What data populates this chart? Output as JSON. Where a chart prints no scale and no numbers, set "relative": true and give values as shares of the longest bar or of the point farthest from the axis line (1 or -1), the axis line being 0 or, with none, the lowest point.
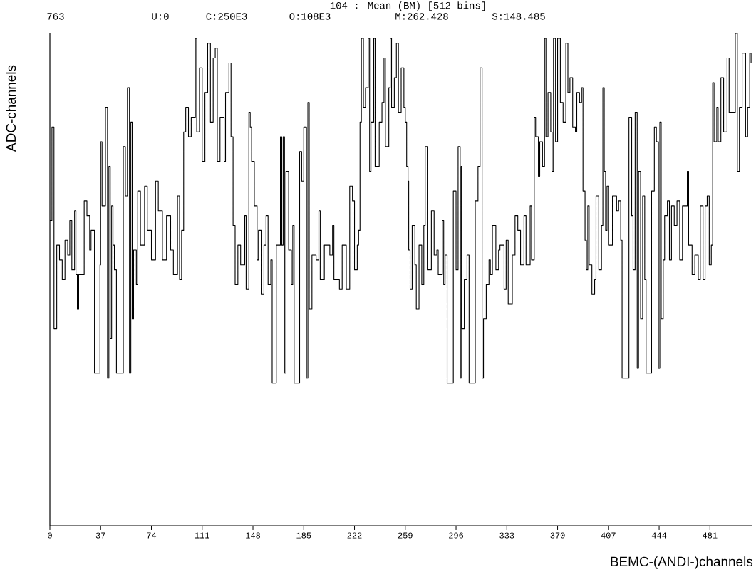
{
  "chart_data": {
    "type": "step",
    "title": "104 : Mean (BM)   [512 bins]",
    "xlabel": "BEMC-(ANDI-)channels",
    "ylabel": "ADC-channels",
    "annotations": [
      "763",
      "U:0",
      "C:250E3",
      "O:108E3",
      "M:262.428",
      "S:148.485"
    ],
    "relative": true,
    "xlim": [
      0,
      512
    ],
    "xticks": [
      0,
      37,
      74,
      111,
      148,
      185,
      222,
      259,
      296,
      333,
      370,
      407,
      444,
      481
    ],
    "series": [
      {
        "color": "#000000",
        "x": [
          0,
          1.5,
          3,
          5,
          7,
          9,
          11,
          13,
          14.5,
          16,
          18,
          19,
          20,
          21,
          25,
          27,
          29,
          30,
          32.5,
          36.5,
          37,
          38,
          40.5,
          42,
          43,
          44,
          45,
          46,
          47,
          48.5,
          53.5,
          55,
          56.5,
          58,
          59,
          60,
          61,
          63,
          64,
          66,
          69,
          71,
          74,
          77,
          79,
          82,
          85,
          88,
          90,
          93,
          94.5,
          96,
          97.5,
          99,
          101,
          103,
          106,
          107,
          109,
          111,
          113,
          115,
          117,
          119,
          120.5,
          122,
          124,
          127,
          128,
          130.5,
          132,
          133.5,
          135,
          137,
          139,
          142,
          143,
          145,
          146,
          147,
          149,
          151,
          152,
          154,
          156,
          157.5,
          159,
          161,
          162,
          165,
          168,
          169,
          170,
          171,
          172,
          174,
          176,
          177,
          178,
          182,
          183.5,
          185,
          187,
          188,
          189,
          191,
          194,
          196,
          197,
          200,
          204,
          206,
          207,
          211,
          213,
          216,
          218.5,
          220.5,
          222,
          224,
          225,
          226,
          227,
          228.5,
          230,
          232,
          233,
          234,
          236,
          237,
          240,
          242,
          243.5,
          244.5,
          247,
          248,
          249,
          251,
          252.5,
          254,
          256,
          258,
          259,
          260,
          261,
          261.5,
          262.5,
          264,
          266,
          267,
          269,
          271,
          272.5,
          273.5,
          275,
          278,
          280,
          282,
          283,
          286,
          287,
          288,
          289.5,
          294,
          296,
          297.5,
          299,
          299.7,
          300.3,
          302,
          304,
          305.5,
          310,
          312,
          313.5,
          315,
          316,
          318,
          320,
          321,
          322.5,
          325,
          327,
          328,
          331,
          332.5,
          334,
          337,
          339,
          341,
          343,
          345.5,
          347,
          350,
          351,
          353,
          354,
          356,
          357,
          359,
          360.5,
          361.5,
          363,
          365,
          366,
          367,
          368.5,
          370,
          372,
          374,
          376,
          377.5,
          379,
          381,
          383,
          384,
          386,
          387.5,
          388.5,
          390,
          391,
          392,
          393,
          395,
          397,
          398,
          400,
          402,
          403,
          404,
          405,
          406,
          407,
          410,
          413,
          414.5,
          416,
          417,
          422,
          424,
          425,
          426.5,
          428,
          429,
          430.5,
          432,
          433.5,
          434.5,
          438.5,
          440.5,
          442,
          443.5,
          444.5,
          445.5,
          447,
          448,
          450,
          451.5,
          453,
          455,
          457,
          459,
          461,
          464.5,
          465.5,
          468,
          470,
          472.5,
          474,
          476,
          477.5,
          479,
          480.5,
          482,
          483,
          484,
          486,
          487,
          489,
          491,
          493.5,
          495,
          499.5,
          501,
          502.5,
          504.5,
          507,
          508.5,
          510,
          511
        ],
        "values": [
          0.62,
          0.81,
          0.4,
          0.57,
          0.54,
          0.5,
          0.58,
          0.55,
          0.62,
          0.52,
          0.64,
          0.51,
          0.44,
          0.51,
          0.66,
          0.63,
          0.56,
          0.6,
          0.31,
          0.53,
          0.78,
          0.65,
          0.85,
          0.3,
          0.73,
          0.38,
          0.65,
          0.57,
          0.52,
          0.31,
          0.77,
          0.67,
          0.89,
          0.31,
          0.82,
          0.42,
          0.56,
          0.49,
          0.68,
          0.57,
          0.69,
          0.6,
          0.54,
          0.7,
          0.64,
          0.54,
          0.63,
          0.56,
          0.51,
          0.67,
          0.5,
          0.6,
          0.8,
          0.85,
          0.79,
          0.83,
          0.99,
          0.8,
          0.93,
          0.74,
          0.88,
          0.98,
          0.82,
          0.95,
          0.97,
          0.74,
          0.83,
          0.74,
          0.88,
          0.94,
          0.79,
          0.61,
          0.49,
          0.57,
          0.53,
          0.63,
          0.48,
          0.84,
          0.81,
          0.74,
          0.65,
          0.54,
          0.6,
          0.47,
          0.57,
          0.63,
          0.49,
          0.54,
          0.29,
          0.57,
          0.79,
          0.57,
          0.79,
          0.31,
          0.72,
          0.56,
          0.49,
          0.61,
          0.29,
          0.76,
          0.7,
          0.81,
          0.3,
          0.86,
          0.44,
          0.55,
          0.54,
          0.64,
          0.5,
          0.57,
          0.55,
          0.61,
          0.5,
          0.48,
          0.57,
          0.48,
          0.69,
          0.66,
          0.52,
          0.57,
          0.6,
          0.82,
          0.99,
          0.85,
          0.89,
          0.99,
          0.72,
          0.82,
          0.99,
          0.73,
          0.82,
          0.86,
          0.95,
          0.77,
          0.89,
          0.99,
          0.85,
          0.91,
          0.98,
          0.84,
          0.93,
          0.85,
          0.82,
          0.73,
          0.7,
          0.56,
          0.48,
          0.61,
          0.53,
          0.44,
          0.57,
          0.49,
          0.61,
          0.77,
          0.52,
          0.64,
          0.55,
          0.56,
          0.51,
          0.62,
          0.49,
          0.55,
          0.29,
          0.68,
          0.52,
          0.77,
          0.3,
          0.73,
          0.4,
          0.5,
          0.55,
          0.29,
          0.66,
          0.73,
          0.93,
          0.3,
          0.42,
          0.49,
          0.54,
          0.51,
          0.61,
          0.52,
          0.56,
          0.57,
          0.48,
          0.58,
          0.45,
          0.55,
          0.63,
          0.6,
          0.53,
          0.63,
          0.53,
          0.65,
          0.54,
          0.83,
          0.79,
          0.71,
          0.78,
          0.73,
          0.99,
          0.79,
          0.88,
          0.8,
          0.72,
          0.99,
          0.78,
          0.99,
          0.86,
          0.82,
          0.98,
          0.88,
          0.91,
          0.81,
          0.8,
          0.88,
          0.86,
          0.89,
          0.68,
          0.58,
          0.52,
          0.65,
          0.53,
          0.47,
          0.5,
          0.67,
          0.52,
          0.61,
          0.89,
          0.72,
          0.6,
          0.69,
          0.57,
          0.67,
          0.64,
          0.66,
          0.58,
          0.3,
          0.83,
          0.63,
          0.52,
          0.84,
          0.32,
          0.72,
          0.42,
          0.67,
          0.5,
          0.31,
          0.68,
          0.81,
          0.78,
          0.32,
          0.82,
          0.42,
          0.54,
          0.63,
          0.66,
          0.54,
          0.65,
          0.61,
          0.66,
          0.54,
          0.65,
          0.72,
          0.57,
          0.51,
          0.55,
          0.5,
          0.65,
          0.5,
          0.65,
          0.67,
          0.53,
          0.57,
          0.9,
          0.78,
          0.85,
          0.78,
          0.91,
          0.8,
          0.95,
          0.84,
          1.0,
          0.72,
          0.85,
          0.96,
          0.79,
          0.85,
          0.96,
          0.94
        ]
      }
    ]
  }
}
